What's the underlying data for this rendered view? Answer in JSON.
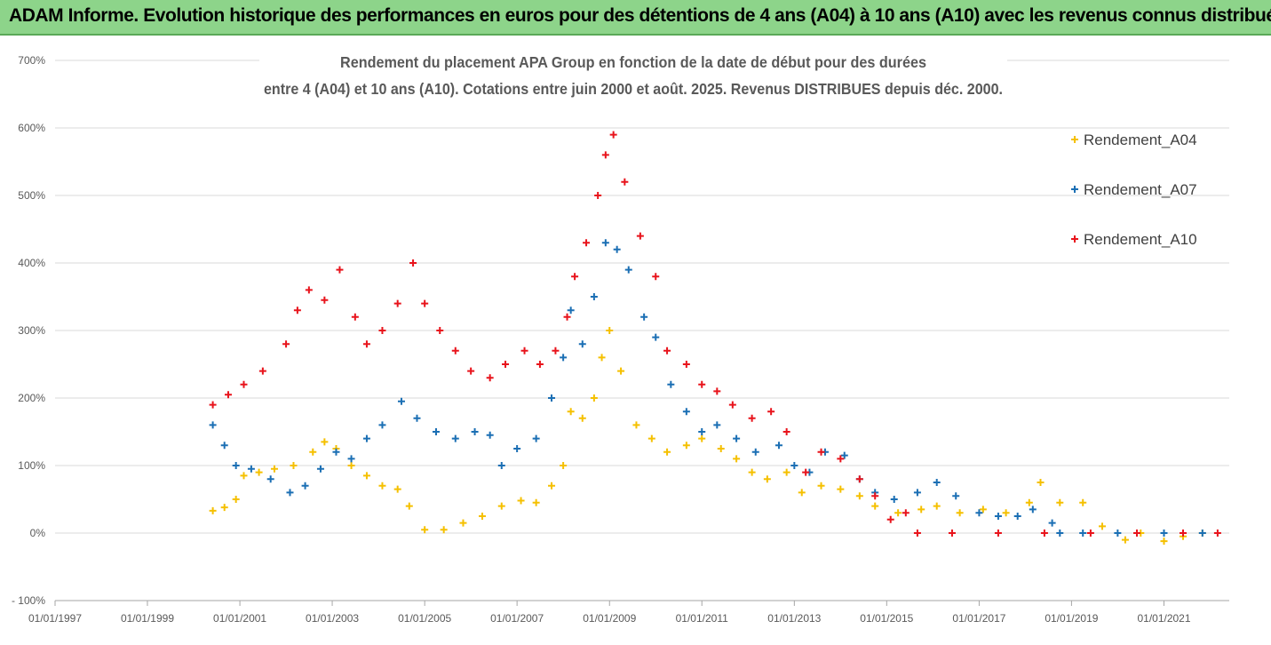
{
  "header": {
    "banner": "ADAM Informe. Evolution historique des performances en euros pour des détentions de 4 ans (A04) à 10 ans (A10) avec les revenus connus distribués"
  },
  "chart_data": {
    "type": "scatter",
    "title_line1": "Rendement du placement APA Group en fonction de la date de début pour des durées",
    "title_line2": "entre 4 (A04) et 10 ans (A10). Cotations entre juin 2000 et août. 2025. Revenus DISTRIBUES depuis déc. 2000.",
    "xlabel": "",
    "ylabel": "",
    "ylim": [
      -100,
      700
    ],
    "xlim": [
      "1997-01-01",
      "2022-06-01"
    ],
    "y_ticks": [
      "- 100%",
      "0%",
      "100%",
      "200%",
      "300%",
      "400%",
      "500%",
      "600%",
      "700%"
    ],
    "x_ticks": [
      "01/01/1997",
      "01/01/1999",
      "01/01/2001",
      "01/01/2003",
      "01/01/2005",
      "01/01/2007",
      "01/01/2009",
      "01/01/2011",
      "01/01/2013",
      "01/01/2015",
      "01/01/2017",
      "01/01/2019",
      "01/01/2021"
    ],
    "grid": "horizontal",
    "legend_position": "right",
    "marker": "+",
    "series": [
      {
        "name": "Rendement_A04",
        "color": "#f5c000",
        "points": [
          [
            "2000-06-01",
            33
          ],
          [
            "2000-09-01",
            38
          ],
          [
            "2000-12-01",
            50
          ],
          [
            "2001-02-01",
            85
          ],
          [
            "2001-06-01",
            90
          ],
          [
            "2001-10-01",
            95
          ],
          [
            "2002-03-01",
            100
          ],
          [
            "2002-08-01",
            120
          ],
          [
            "2002-11-01",
            135
          ],
          [
            "2003-02-01",
            125
          ],
          [
            "2003-06-01",
            100
          ],
          [
            "2003-10-01",
            85
          ],
          [
            "2004-02-01",
            70
          ],
          [
            "2004-06-01",
            65
          ],
          [
            "2004-09-01",
            40
          ],
          [
            "2005-01-01",
            5
          ],
          [
            "2005-06-01",
            5
          ],
          [
            "2005-11-01",
            15
          ],
          [
            "2006-04-01",
            25
          ],
          [
            "2006-09-01",
            40
          ],
          [
            "2007-02-01",
            48
          ],
          [
            "2007-06-01",
            45
          ],
          [
            "2007-10-01",
            70
          ],
          [
            "2008-01-01",
            100
          ],
          [
            "2008-03-01",
            180
          ],
          [
            "2008-06-01",
            170
          ],
          [
            "2008-09-01",
            200
          ],
          [
            "2008-11-01",
            260
          ],
          [
            "2009-01-01",
            300
          ],
          [
            "2009-04-01",
            240
          ],
          [
            "2009-08-01",
            160
          ],
          [
            "2009-12-01",
            140
          ],
          [
            "2010-04-01",
            120
          ],
          [
            "2010-09-01",
            130
          ],
          [
            "2011-01-01",
            140
          ],
          [
            "2011-06-01",
            125
          ],
          [
            "2011-10-01",
            110
          ],
          [
            "2012-02-01",
            90
          ],
          [
            "2012-06-01",
            80
          ],
          [
            "2012-11-01",
            90
          ],
          [
            "2013-03-01",
            60
          ],
          [
            "2013-08-01",
            70
          ],
          [
            "2014-01-01",
            65
          ],
          [
            "2014-06-01",
            55
          ],
          [
            "2014-10-01",
            40
          ],
          [
            "2015-04-01",
            30
          ],
          [
            "2015-10-01",
            35
          ],
          [
            "2016-02-01",
            40
          ],
          [
            "2016-08-01",
            30
          ],
          [
            "2017-02-01",
            35
          ],
          [
            "2017-08-01",
            30
          ],
          [
            "2018-02-01",
            45
          ],
          [
            "2018-05-01",
            75
          ],
          [
            "2018-10-01",
            45
          ],
          [
            "2019-04-01",
            45
          ],
          [
            "2019-09-01",
            10
          ],
          [
            "2020-03-01",
            -10
          ],
          [
            "2020-07-01",
            0
          ],
          [
            "2021-01-01",
            -12
          ],
          [
            "2021-06-01",
            -5
          ],
          [
            "2021-11-01",
            0
          ]
        ]
      },
      {
        "name": "Rendement_A07",
        "color": "#1b6fb4",
        "points": [
          [
            "2000-06-01",
            160
          ],
          [
            "2000-09-01",
            130
          ],
          [
            "2000-12-01",
            100
          ],
          [
            "2001-04-01",
            95
          ],
          [
            "2001-09-01",
            80
          ],
          [
            "2002-02-01",
            60
          ],
          [
            "2002-06-01",
            70
          ],
          [
            "2002-10-01",
            95
          ],
          [
            "2003-02-01",
            120
          ],
          [
            "2003-06-01",
            110
          ],
          [
            "2003-10-01",
            140
          ],
          [
            "2004-02-01",
            160
          ],
          [
            "2004-07-01",
            195
          ],
          [
            "2004-11-01",
            170
          ],
          [
            "2005-04-01",
            150
          ],
          [
            "2005-09-01",
            140
          ],
          [
            "2006-02-01",
            150
          ],
          [
            "2006-06-01",
            145
          ],
          [
            "2006-09-01",
            100
          ],
          [
            "2007-01-01",
            125
          ],
          [
            "2007-06-01",
            140
          ],
          [
            "2007-10-01",
            200
          ],
          [
            "2008-01-01",
            260
          ],
          [
            "2008-03-01",
            330
          ],
          [
            "2008-06-01",
            280
          ],
          [
            "2008-09-01",
            350
          ],
          [
            "2008-12-01",
            430
          ],
          [
            "2009-03-01",
            420
          ],
          [
            "2009-06-01",
            390
          ],
          [
            "2009-10-01",
            320
          ],
          [
            "2010-01-01",
            290
          ],
          [
            "2010-05-01",
            220
          ],
          [
            "2010-09-01",
            180
          ],
          [
            "2011-01-01",
            150
          ],
          [
            "2011-05-01",
            160
          ],
          [
            "2011-10-01",
            140
          ],
          [
            "2012-03-01",
            120
          ],
          [
            "2012-09-01",
            130
          ],
          [
            "2013-01-01",
            100
          ],
          [
            "2013-05-01",
            90
          ],
          [
            "2013-09-01",
            120
          ],
          [
            "2014-02-01",
            115
          ],
          [
            "2014-06-01",
            80
          ],
          [
            "2014-10-01",
            60
          ],
          [
            "2015-03-01",
            50
          ],
          [
            "2015-09-01",
            60
          ],
          [
            "2016-02-01",
            75
          ],
          [
            "2016-07-01",
            55
          ],
          [
            "2017-01-01",
            30
          ],
          [
            "2017-06-01",
            25
          ],
          [
            "2017-11-01",
            25
          ],
          [
            "2018-03-01",
            35
          ],
          [
            "2018-08-01",
            15
          ],
          [
            "2018-10-01",
            0
          ],
          [
            "2019-04-01",
            0
          ],
          [
            "2020-01-01",
            0
          ],
          [
            "2021-01-01",
            0
          ],
          [
            "2021-11-01",
            0
          ]
        ]
      },
      {
        "name": "Rendement_A10",
        "color": "#e8141c",
        "points": [
          [
            "2000-06-01",
            190
          ],
          [
            "2000-10-01",
            205
          ],
          [
            "2001-02-01",
            220
          ],
          [
            "2001-07-01",
            240
          ],
          [
            "2002-01-01",
            280
          ],
          [
            "2002-04-01",
            330
          ],
          [
            "2002-07-01",
            360
          ],
          [
            "2002-11-01",
            345
          ],
          [
            "2003-03-01",
            390
          ],
          [
            "2003-07-01",
            320
          ],
          [
            "2003-10-01",
            280
          ],
          [
            "2004-02-01",
            300
          ],
          [
            "2004-06-01",
            340
          ],
          [
            "2004-10-01",
            400
          ],
          [
            "2005-01-01",
            340
          ],
          [
            "2005-05-01",
            300
          ],
          [
            "2005-09-01",
            270
          ],
          [
            "2006-01-01",
            240
          ],
          [
            "2006-06-01",
            230
          ],
          [
            "2006-10-01",
            250
          ],
          [
            "2007-03-01",
            270
          ],
          [
            "2007-07-01",
            250
          ],
          [
            "2007-11-01",
            270
          ],
          [
            "2008-02-01",
            320
          ],
          [
            "2008-04-01",
            380
          ],
          [
            "2008-07-01",
            430
          ],
          [
            "2008-10-01",
            500
          ],
          [
            "2008-12-01",
            560
          ],
          [
            "2009-02-01",
            590
          ],
          [
            "2009-05-01",
            520
          ],
          [
            "2009-09-01",
            440
          ],
          [
            "2010-01-01",
            380
          ],
          [
            "2010-04-01",
            270
          ],
          [
            "2010-09-01",
            250
          ],
          [
            "2011-01-01",
            220
          ],
          [
            "2011-05-01",
            210
          ],
          [
            "2011-09-01",
            190
          ],
          [
            "2012-02-01",
            170
          ],
          [
            "2012-07-01",
            180
          ],
          [
            "2012-11-01",
            150
          ],
          [
            "2013-04-01",
            90
          ],
          [
            "2013-08-01",
            120
          ],
          [
            "2014-01-01",
            110
          ],
          [
            "2014-06-01",
            80
          ],
          [
            "2014-10-01",
            55
          ],
          [
            "2015-02-01",
            20
          ],
          [
            "2015-06-01",
            30
          ],
          [
            "2015-09-01",
            0
          ],
          [
            "2016-06-01",
            0
          ],
          [
            "2017-06-01",
            0
          ],
          [
            "2018-06-01",
            0
          ],
          [
            "2019-06-01",
            0
          ],
          [
            "2020-06-01",
            0
          ],
          [
            "2021-06-01",
            0
          ],
          [
            "2022-03-01",
            0
          ]
        ]
      }
    ]
  }
}
